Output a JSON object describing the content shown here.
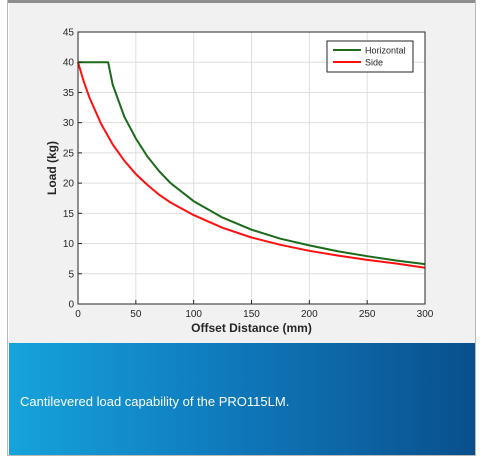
{
  "chart_data": {
    "type": "line",
    "xlabel": "Offset Distance (mm)",
    "ylabel": "Load (kg)",
    "xlim": [
      0,
      300
    ],
    "ylim": [
      0,
      45
    ],
    "xticks": [
      0,
      50,
      100,
      150,
      200,
      250,
      300
    ],
    "yticks": [
      0,
      5,
      10,
      15,
      20,
      25,
      30,
      35,
      40,
      45
    ],
    "grid": true,
    "legend": "top-right",
    "series": [
      {
        "name": "Horizontal",
        "color": "#1b6b1b",
        "x": [
          0,
          26,
          30,
          40,
          50,
          60,
          70,
          80,
          100,
          125,
          150,
          175,
          200,
          225,
          250,
          275,
          300
        ],
        "y": [
          40,
          40,
          36.3,
          31.0,
          27.4,
          24.4,
          22.0,
          20.0,
          17.0,
          14.3,
          12.3,
          10.8,
          9.7,
          8.7,
          7.9,
          7.2,
          6.6
        ]
      },
      {
        "name": "Side",
        "color": "#ff1010",
        "x": [
          0,
          5,
          10,
          20,
          30,
          40,
          50,
          60,
          70,
          80,
          100,
          125,
          150,
          175,
          200,
          225,
          250,
          275,
          300
        ],
        "y": [
          40,
          36.8,
          34.1,
          29.8,
          26.4,
          23.7,
          21.5,
          19.7,
          18.1,
          16.8,
          14.7,
          12.6,
          11.0,
          9.8,
          8.8,
          8.0,
          7.3,
          6.7,
          6.0
        ]
      }
    ]
  },
  "caption": "Cantilevered load capability of the PRO115LM."
}
